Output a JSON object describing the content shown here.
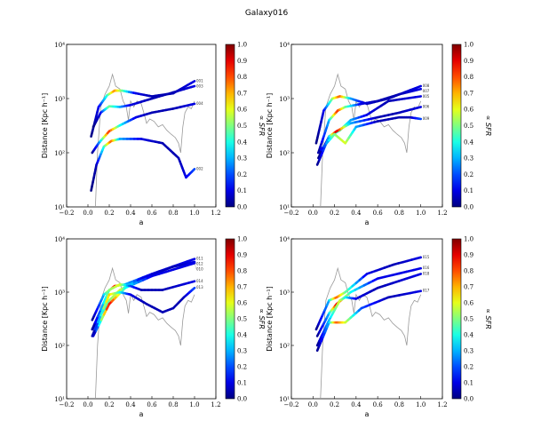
{
  "title": "Galaxy016",
  "chart_data": {
    "type": "line",
    "title": "Galaxy016",
    "xlabel": "a",
    "ylabel": "Distance [Kpc h⁻¹]",
    "colorbar_label": "∝ SFR",
    "xlim": [
      -0.2,
      1.2
    ],
    "ylim": [
      10,
      10000
    ],
    "yscale": "log",
    "xticks": [
      "−0.2",
      "0.0",
      "0.2",
      "0.4",
      "0.6",
      "0.8",
      "1.0",
      "1.2"
    ],
    "yticks": [
      "10¹",
      "10²",
      "10³",
      "10⁴"
    ],
    "colorbar_ticks": [
      "0.0",
      "0.1",
      "0.2",
      "0.3",
      "0.4",
      "0.5",
      "0.6",
      "0.7",
      "0.8",
      "0.9",
      "1.0"
    ],
    "reference_line": [
      [
        0.07,
        10
      ],
      [
        0.09,
        100
      ],
      [
        0.12,
        700
      ],
      [
        0.16,
        1200
      ],
      [
        0.2,
        1700
      ],
      [
        0.23,
        2800
      ],
      [
        0.26,
        1700
      ],
      [
        0.3,
        1500
      ],
      [
        0.33,
        900
      ],
      [
        0.36,
        700
      ],
      [
        0.38,
        400
      ],
      [
        0.4,
        900
      ],
      [
        0.43,
        700
      ],
      [
        0.46,
        900
      ],
      [
        0.5,
        800
      ],
      [
        0.53,
        500
      ],
      [
        0.55,
        350
      ],
      [
        0.58,
        420
      ],
      [
        0.62,
        380
      ],
      [
        0.66,
        300
      ],
      [
        0.7,
        330
      ],
      [
        0.74,
        260
      ],
      [
        0.78,
        220
      ],
      [
        0.82,
        190
      ],
      [
        0.85,
        150
      ],
      [
        0.87,
        100
      ],
      [
        0.89,
        300
      ],
      [
        0.91,
        550
      ],
      [
        0.94,
        700
      ],
      [
        0.97,
        650
      ],
      [
        1.0,
        900
      ]
    ],
    "panels": [
      {
        "tracks": [
          {
            "name": "001",
            "points": [
              [
                0.03,
                200,
                0
              ],
              [
                0.1,
                700,
                0.1
              ],
              [
                0.18,
                1150,
                0.4
              ],
              [
                0.25,
                1400,
                0.75
              ],
              [
                0.32,
                1400,
                0.5
              ],
              [
                0.45,
                1250,
                0.1
              ],
              [
                0.6,
                1100,
                0.05
              ],
              [
                0.8,
                1250,
                0.05
              ],
              [
                1.0,
                2100,
                0.1
              ]
            ]
          },
          {
            "name": "003",
            "points": [
              [
                0.05,
                300,
                0
              ],
              [
                0.12,
                550,
                0.1
              ],
              [
                0.2,
                720,
                0.5
              ],
              [
                0.3,
                700,
                0.3
              ],
              [
                0.4,
                760,
                0.1
              ],
              [
                0.6,
                1000,
                0.05
              ],
              [
                0.8,
                1300,
                0.05
              ],
              [
                1.0,
                1700,
                0.1
              ]
            ]
          },
          {
            "name": "004",
            "points": [
              [
                0.04,
                100,
                0
              ],
              [
                0.1,
                150,
                0.2
              ],
              [
                0.2,
                250,
                0.85
              ],
              [
                0.3,
                320,
                0.4
              ],
              [
                0.45,
                450,
                0.1
              ],
              [
                0.6,
                550,
                0.05
              ],
              [
                0.8,
                650,
                0.05
              ],
              [
                1.0,
                800,
                0.1
              ]
            ]
          },
          {
            "name": "002",
            "points": [
              [
                0.03,
                20,
                0
              ],
              [
                0.08,
                60,
                0.05
              ],
              [
                0.15,
                130,
                0.4
              ],
              [
                0.22,
                165,
                0.8
              ],
              [
                0.3,
                180,
                0.3
              ],
              [
                0.5,
                180,
                0.1
              ],
              [
                0.7,
                150,
                0.05
              ],
              [
                0.85,
                80,
                0.05
              ],
              [
                0.92,
                35,
                0.1
              ],
              [
                1.0,
                50,
                0.2
              ]
            ]
          }
        ]
      },
      {
        "tracks": [
          {
            "name": "008",
            "points": [
              [
                0.03,
                150,
                0
              ],
              [
                0.1,
                600,
                0.1
              ],
              [
                0.18,
                1000,
                0.5
              ],
              [
                0.25,
                1100,
                0.8
              ],
              [
                0.35,
                1000,
                0.3
              ],
              [
                0.5,
                800,
                0.05
              ],
              [
                0.7,
                1000,
                0.05
              ],
              [
                1.0,
                1700,
                0.1
              ]
            ]
          },
          {
            "name": "007",
            "points": [
              [
                0.05,
                100,
                0
              ],
              [
                0.15,
                400,
                0.3
              ],
              [
                0.23,
                600,
                0.85
              ],
              [
                0.3,
                700,
                0.5
              ],
              [
                0.45,
                800,
                0.1
              ],
              [
                0.6,
                900,
                0.05
              ],
              [
                0.8,
                1200,
                0.05
              ],
              [
                1.0,
                1500,
                0.1
              ]
            ]
          },
          {
            "name": "005",
            "points": [
              [
                0.05,
                80,
                0
              ],
              [
                0.15,
                200,
                0.1
              ],
              [
                0.25,
                260,
                0.5
              ],
              [
                0.35,
                400,
                0.3
              ],
              [
                0.5,
                500,
                0.1
              ],
              [
                0.7,
                900,
                0.05
              ],
              [
                1.0,
                1100,
                0.1
              ]
            ]
          },
          {
            "name": "006",
            "points": [
              [
                0.04,
                60,
                0
              ],
              [
                0.15,
                200,
                0.3
              ],
              [
                0.22,
                250,
                0.95
              ],
              [
                0.35,
                350,
                0.3
              ],
              [
                0.6,
                450,
                0.05
              ],
              [
                0.8,
                550,
                0.05
              ],
              [
                1.0,
                700,
                0.1
              ]
            ]
          },
          {
            "name": "009",
            "points": [
              [
                0.05,
                100,
                0
              ],
              [
                0.2,
                220,
                0.5
              ],
              [
                0.3,
                150,
                0.6
              ],
              [
                0.4,
                300,
                0.3
              ],
              [
                0.6,
                380,
                0.05
              ],
              [
                0.8,
                450,
                0.05
              ],
              [
                0.9,
                450,
                0.05
              ],
              [
                1.0,
                420,
                0.2
              ]
            ]
          }
        ]
      },
      {
        "tracks": [
          {
            "name": "011",
            "points": [
              [
                0.04,
                300,
                0
              ],
              [
                0.15,
                900,
                0.3
              ],
              [
                0.25,
                1300,
                0.9
              ],
              [
                0.35,
                1400,
                0.3
              ],
              [
                0.6,
                2200,
                0.1
              ],
              [
                1.0,
                4200,
                0.1
              ]
            ]
          },
          {
            "name": "012",
            "points": [
              [
                0.04,
                200,
                0
              ],
              [
                0.2,
                700,
                0.5
              ],
              [
                0.3,
                1100,
                0.6
              ],
              [
                0.5,
                1800,
                0.1
              ],
              [
                0.8,
                3000,
                0.05
              ],
              [
                1.0,
                3700,
                0.1
              ]
            ]
          },
          {
            "name": "010",
            "points": [
              [
                0.05,
                150,
                0
              ],
              [
                0.2,
                600,
                0.9
              ],
              [
                0.35,
                1200,
                0.4
              ],
              [
                0.6,
                2000,
                0.1
              ],
              [
                1.0,
                3500,
                0.1
              ]
            ]
          },
          {
            "name": "014",
            "points": [
              [
                0.04,
                200,
                0
              ],
              [
                0.2,
                1100,
                0.5
              ],
              [
                0.3,
                1400,
                0.6
              ],
              [
                0.4,
                1300,
                0.2
              ],
              [
                0.5,
                1100,
                0.05
              ],
              [
                0.7,
                1100,
                0.05
              ],
              [
                1.0,
                1600,
                0.1
              ]
            ]
          },
          {
            "name": "013",
            "points": [
              [
                0.04,
                150,
                0
              ],
              [
                0.2,
                900,
                0.7
              ],
              [
                0.3,
                1000,
                0.4
              ],
              [
                0.4,
                900,
                0.1
              ],
              [
                0.55,
                600,
                0.05
              ],
              [
                0.7,
                420,
                0.05
              ],
              [
                0.8,
                500,
                0.05
              ],
              [
                0.9,
                800,
                0.05
              ],
              [
                1.0,
                1200,
                0.2
              ]
            ]
          }
        ]
      },
      {
        "tracks": [
          {
            "name": "015",
            "points": [
              [
                0.03,
                200,
                0
              ],
              [
                0.15,
                700,
                0.3
              ],
              [
                0.22,
                800,
                0.8
              ],
              [
                0.3,
                1000,
                0.5
              ],
              [
                0.5,
                2200,
                0.1
              ],
              [
                0.75,
                3300,
                0.05
              ],
              [
                1.0,
                4500,
                0.1
              ]
            ]
          },
          {
            "name": "016",
            "points": [
              [
                0.04,
                150,
                0
              ],
              [
                0.15,
                400,
                0.3
              ],
              [
                0.22,
                600,
                0.9
              ],
              [
                0.35,
                1000,
                0.4
              ],
              [
                0.6,
                1800,
                0.1
              ],
              [
                1.0,
                2800,
                0.1
              ]
            ]
          },
          {
            "name": "018",
            "points": [
              [
                0.04,
                100,
                0
              ],
              [
                0.15,
                300,
                0.3
              ],
              [
                0.25,
                700,
                0.6
              ],
              [
                0.3,
                800,
                0.4
              ],
              [
                0.4,
                750,
                0.1
              ],
              [
                0.6,
                1200,
                0.05
              ],
              [
                1.0,
                2200,
                0.1
              ]
            ]
          },
          {
            "name": "017",
            "points": [
              [
                0.04,
                80,
                0
              ],
              [
                0.15,
                270,
                0.3
              ],
              [
                0.22,
                270,
                0.8
              ],
              [
                0.3,
                270,
                0.6
              ],
              [
                0.45,
                500,
                0.2
              ],
              [
                0.7,
                800,
                0.05
              ],
              [
                1.0,
                1050,
                0.1
              ]
            ]
          }
        ]
      }
    ]
  }
}
